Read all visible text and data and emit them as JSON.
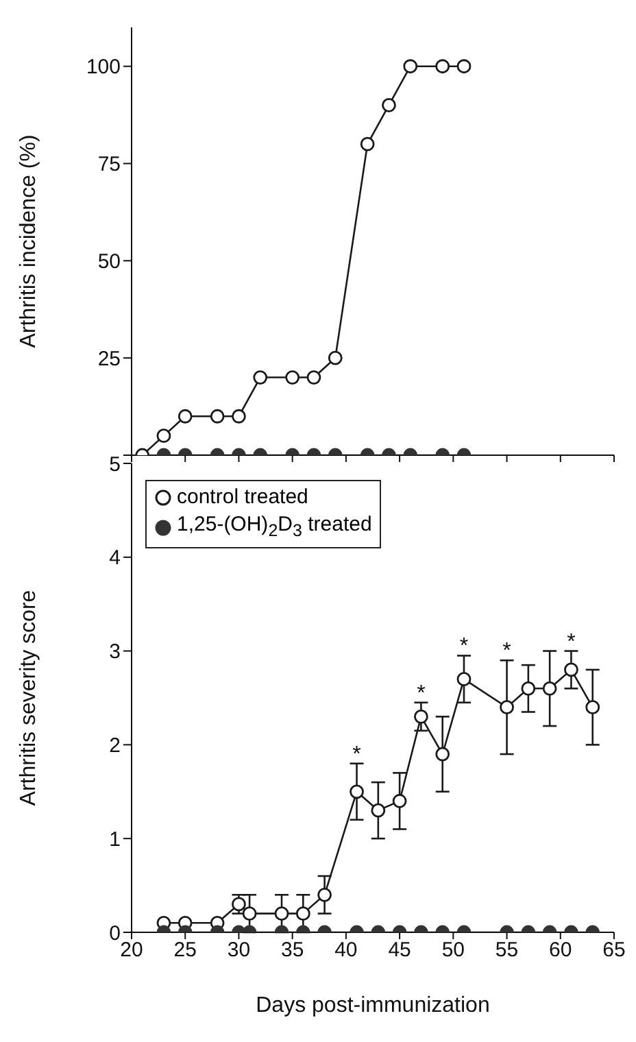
{
  "chart_data": [
    {
      "type": "line",
      "ylabel": "Arthritis incidence (%)",
      "xlim": [
        20,
        65
      ],
      "xticks": [
        20,
        25,
        30,
        35,
        40,
        45,
        50,
        55,
        60,
        65
      ],
      "ylim": [
        0,
        110
      ],
      "yticks": [
        {
          "value": 0,
          "label": null
        },
        25,
        50,
        75,
        100
      ],
      "tick_labels": "y",
      "marker": "circle",
      "legend": false,
      "series": [
        {
          "color": "#1a1a1a",
          "x": [
            21,
            23,
            25,
            28,
            30,
            32,
            35,
            37,
            39,
            42,
            44,
            46,
            49,
            51
          ],
          "values": [
            0,
            5,
            10,
            10,
            10,
            20,
            20,
            20,
            25,
            80,
            90,
            100,
            100,
            100
          ]
        },
        {
          "color": "#333333",
          "x": [
            23,
            25,
            28,
            30,
            32,
            35,
            37,
            39,
            42,
            44,
            46,
            49,
            51
          ],
          "values": [
            0,
            0,
            0,
            0,
            0,
            0,
            0,
            0,
            0,
            0,
            0,
            0,
            0
          ]
        }
      ]
    },
    {
      "type": "line",
      "ylabel": "Arthritis severity score",
      "xlabel": "Days post-immunization",
      "xlim": [
        20,
        65
      ],
      "xticks": [
        20,
        25,
        30,
        35,
        40,
        45,
        50,
        55,
        60,
        65
      ],
      "ylim": [
        0,
        5
      ],
      "yticks": [
        0,
        1,
        2,
        3,
        4,
        5
      ],
      "marker": "circle",
      "legend": "top left",
      "annotations": [
        {
          "text": "*",
          "x": 41,
          "y": 1.8
        },
        {
          "text": "*",
          "x": 47,
          "y": 2.45
        },
        {
          "text": "*",
          "x": 51,
          "y": 2.95
        },
        {
          "text": "*",
          "x": 55,
          "y": 2.9
        },
        {
          "text": "*",
          "x": 61,
          "y": 3.0
        }
      ],
      "series": [
        {
          "name": "control treated",
          "color": "#1a1a1a",
          "x": [
            23,
            25,
            28,
            30,
            31,
            34,
            36,
            38,
            41,
            43,
            45,
            47,
            49,
            51,
            55,
            57,
            59,
            61,
            63
          ],
          "values": [
            0.1,
            0.1,
            0.1,
            0.3,
            0.2,
            0.2,
            0.2,
            0.4,
            1.5,
            1.3,
            1.4,
            2.3,
            1.9,
            2.7,
            2.4,
            2.6,
            2.6,
            2.8,
            2.4
          ],
          "errors": [
            null,
            null,
            null,
            0.1,
            0.2,
            0.2,
            0.2,
            0.2,
            0.3,
            0.3,
            0.3,
            0.15,
            0.4,
            0.25,
            0.5,
            0.25,
            0.4,
            0.2,
            0.4
          ]
        },
        {
          "name": "1,25-(OH)$_{2}$D$_{3}$ treated",
          "color": "#333333",
          "x": [
            23,
            25,
            28,
            30,
            31,
            34,
            36,
            38,
            41,
            43,
            45,
            47,
            49,
            51,
            55,
            57,
            59,
            61,
            63
          ],
          "values": [
            0,
            0,
            0,
            0,
            0,
            0,
            0,
            0,
            0,
            0,
            0,
            0,
            0,
            0,
            0,
            0,
            0,
            0,
            0
          ]
        }
      ]
    }
  ]
}
